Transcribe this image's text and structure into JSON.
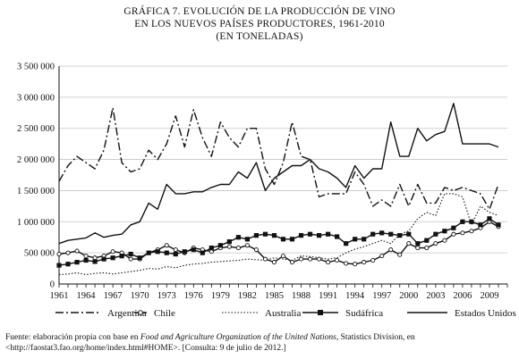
{
  "title_lines": [
    "GRÁFICA 7. EVOLUCIÓN DE LA PRODUCCIÓN DE VINO",
    "EN LOS NUEVOS PAÍSES PRODUCTORES, 1961-2010",
    "(EN TONELADAS)"
  ],
  "source": {
    "prefix": "Fuente: elaboración propia con base en ",
    "italic": "Food and Agriculture Organization of the United Nations",
    "suffix": ", Statistics Division, en <http://faostat3.fao.org/home/index.html#HOME>. [Consulta: 9 de julio de 2012.]"
  },
  "chart_data": {
    "type": "line",
    "title": "GRÁFICA 7. EVOLUCIÓN DE LA PRODUCCIÓN DE VINO EN LOS NUEVOS PAÍSES PRODUCTORES, 1961-2010 (EN TONELADAS)",
    "xlabel": "",
    "ylabel": "",
    "ylim": [
      0,
      3500000
    ],
    "xlim": [
      1961,
      2011
    ],
    "y_ticks": [
      0,
      500000,
      1000000,
      1500000,
      2000000,
      2500000,
      3000000,
      3500000
    ],
    "y_tick_labels": [
      "0",
      "500 000",
      "1 000 000",
      "1 500 000",
      "2 000 000",
      "2 500 000",
      "3 000 000",
      "3 500 000"
    ],
    "x_ticks": [
      1961,
      1964,
      1967,
      1970,
      1973,
      1976,
      1979,
      1982,
      1985,
      1988,
      1991,
      1994,
      1997,
      2000,
      2003,
      2006,
      2009
    ],
    "grid": "horizontal",
    "legend_position": "bottom",
    "x": [
      1961,
      1962,
      1963,
      1964,
      1965,
      1966,
      1967,
      1968,
      1969,
      1970,
      1971,
      1972,
      1973,
      1974,
      1975,
      1976,
      1977,
      1978,
      1979,
      1980,
      1981,
      1982,
      1983,
      1984,
      1985,
      1986,
      1987,
      1988,
      1989,
      1990,
      1991,
      1992,
      1993,
      1994,
      1995,
      1996,
      1997,
      1998,
      1999,
      2000,
      2001,
      2002,
      2003,
      2004,
      2005,
      2006,
      2007,
      2008,
      2009,
      2010
    ],
    "series": [
      {
        "name": "Argentina",
        "style": "dashdot",
        "marker": "none",
        "values": [
          1650000,
          1900000,
          2050000,
          1950000,
          1850000,
          2150000,
          2830000,
          1950000,
          1800000,
          1850000,
          2150000,
          2000000,
          2250000,
          2700000,
          2200000,
          2800000,
          2350000,
          2050000,
          2600000,
          2350000,
          2200000,
          2500000,
          2500000,
          1850000,
          1600000,
          1950000,
          2600000,
          2050000,
          2000000,
          1400000,
          1450000,
          1450000,
          1450000,
          1800000,
          1600000,
          1250000,
          1350000,
          1250000,
          1600000,
          1250000,
          1600000,
          1300000,
          1300000,
          1550000,
          1500000,
          1550000,
          1500000,
          1450000,
          1200000,
          1600000
        ]
      },
      {
        "name": "Chile",
        "style": "solid",
        "marker": "circle",
        "values": [
          480000,
          500000,
          530000,
          450000,
          420000,
          450000,
          520000,
          500000,
          400000,
          400000,
          500000,
          550000,
          620000,
          550000,
          500000,
          580000,
          550000,
          520000,
          580000,
          600000,
          580000,
          620000,
          550000,
          400000,
          350000,
          450000,
          350000,
          400000,
          400000,
          400000,
          350000,
          380000,
          330000,
          320000,
          350000,
          380000,
          450000,
          550000,
          470000,
          650000,
          580000,
          580000,
          650000,
          700000,
          800000,
          820000,
          850000,
          900000,
          1000000,
          920000
        ]
      },
      {
        "name": "Australia",
        "style": "dotted",
        "marker": "none",
        "values": [
          150000,
          160000,
          180000,
          150000,
          170000,
          180000,
          160000,
          180000,
          200000,
          220000,
          250000,
          240000,
          280000,
          260000,
          300000,
          320000,
          330000,
          350000,
          360000,
          370000,
          380000,
          400000,
          390000,
          380000,
          420000,
          400000,
          380000,
          450000,
          440000,
          420000,
          400000,
          420000,
          500000,
          560000,
          600000,
          650000,
          700000,
          650000,
          800000,
          850000,
          1050000,
          1150000,
          1100000,
          1450000,
          1450000,
          1400000,
          950000,
          1250000,
          1150000,
          1100000
        ]
      },
      {
        "name": "Sudáfrica",
        "style": "solid",
        "marker": "square",
        "values": [
          300000,
          320000,
          350000,
          380000,
          360000,
          400000,
          420000,
          450000,
          480000,
          420000,
          500000,
          520000,
          500000,
          480000,
          520000,
          550000,
          500000,
          580000,
          620000,
          680000,
          750000,
          720000,
          780000,
          800000,
          780000,
          720000,
          720000,
          780000,
          800000,
          780000,
          800000,
          760000,
          650000,
          720000,
          720000,
          800000,
          820000,
          800000,
          780000,
          800000,
          650000,
          700000,
          800000,
          850000,
          900000,
          1000000,
          1000000,
          950000,
          1050000,
          950000
        ]
      },
      {
        "name": "Estados Unidos",
        "style": "solid",
        "marker": "none",
        "values": [
          650000,
          700000,
          720000,
          740000,
          820000,
          750000,
          780000,
          800000,
          950000,
          1000000,
          1300000,
          1200000,
          1600000,
          1450000,
          1450000,
          1480000,
          1480000,
          1550000,
          1600000,
          1600000,
          1800000,
          1700000,
          1950000,
          1500000,
          1700000,
          1800000,
          1900000,
          1900000,
          2000000,
          1850000,
          1800000,
          1700000,
          1550000,
          1900000,
          1700000,
          1850000,
          1850000,
          2600000,
          2050000,
          2050000,
          2500000,
          2300000,
          2400000,
          2450000,
          2900000,
          2250000,
          2250000,
          2250000,
          2250000,
          2200000
        ]
      }
    ]
  }
}
